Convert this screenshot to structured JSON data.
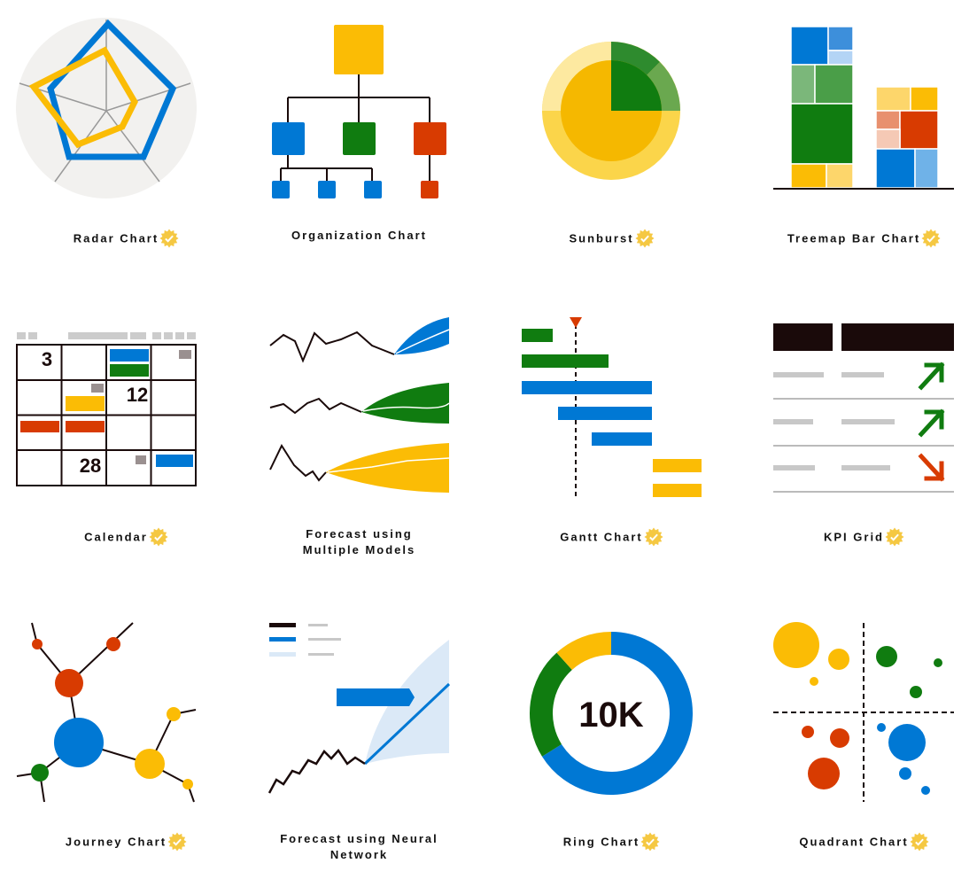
{
  "colors": {
    "blue": "#0078d4",
    "green": "#107c10",
    "yellow": "#fbbc05",
    "red": "#d83b01",
    "dark": "#1a0a0a",
    "badge": "#f5c842"
  },
  "badge_icon": "verified-star-check-icon",
  "cards": [
    {
      "label": "Radar Chart",
      "certified": true
    },
    {
      "label": "Organization Chart",
      "certified": false
    },
    {
      "label": "Sunburst",
      "certified": true
    },
    {
      "label": "Treemap Bar Chart",
      "certified": true
    },
    {
      "label": "Calendar",
      "certified": true,
      "dates": [
        "3",
        "12",
        "28"
      ]
    },
    {
      "label": "Forecast using Multiple Models",
      "certified": false
    },
    {
      "label": "Gantt Chart",
      "certified": true
    },
    {
      "label": "KPI Grid",
      "certified": true
    },
    {
      "label": "Journey Chart",
      "certified": true
    },
    {
      "label": "Forecast using Neural Network",
      "certified": false
    },
    {
      "label": "Ring Chart",
      "certified": true,
      "center_value": "10K"
    },
    {
      "label": "Quadrant Chart",
      "certified": true
    }
  ]
}
